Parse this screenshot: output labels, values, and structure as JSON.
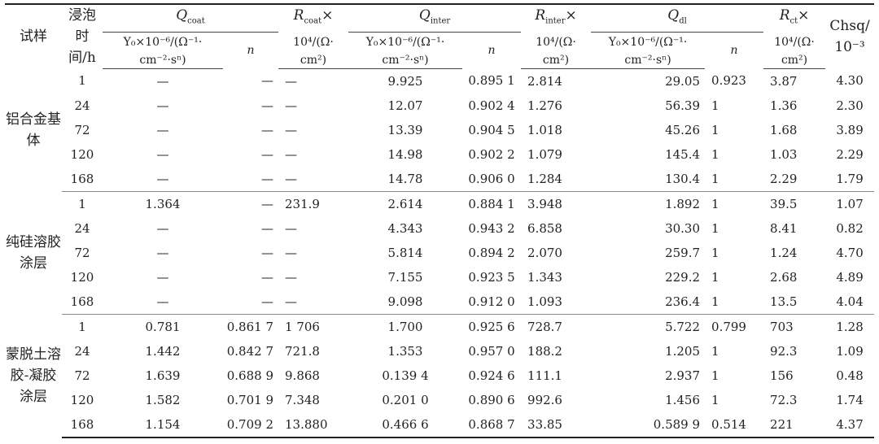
{
  "header": {
    "sample": "试样",
    "immersion_time": "浸泡时间/h",
    "q_coat": "Q",
    "q_coat_sub": "coat",
    "q_inter": "Q",
    "q_inter_sub": "inter",
    "q_dl": "Q",
    "q_dl_sub": "dl",
    "r_coat": "R",
    "r_coat_sub": "coat",
    "r_inter": "R",
    "r_inter_sub": "inter",
    "r_ct": "R",
    "r_ct_sub": "ct",
    "times_sign": "×",
    "y0_unit_line1": "Y₀×10⁻⁶/(Ω⁻¹·",
    "y0_unit_line2": "cm⁻²·sⁿ)",
    "r_unit_line1": "10⁴/(Ω·",
    "r_unit_line2": "cm²)",
    "n": "n",
    "chsq_line1": "Chsq/",
    "chsq_line2": "10⁻³"
  },
  "groups": [
    {
      "name": "铝合金基体",
      "rows": [
        [
          "1",
          "—",
          "—",
          "—",
          "9.925",
          "0.895 1",
          "2.814",
          "29.05",
          "0.923",
          "3.87",
          "4.30"
        ],
        [
          "24",
          "—",
          "—",
          "—",
          "12.07",
          "0.902 4",
          "1.276",
          "56.39",
          "1",
          "1.36",
          "2.30"
        ],
        [
          "72",
          "—",
          "—",
          "—",
          "13.39",
          "0.904 5",
          "1.018",
          "45.26",
          "1",
          "1.68",
          "3.89"
        ],
        [
          "120",
          "—",
          "—",
          "—",
          "14.98",
          "0.902 2",
          "1.079",
          "145.4",
          "1",
          "1.03",
          "2.29"
        ],
        [
          "168",
          "—",
          "—",
          "—",
          "14.78",
          "0.906 0",
          "1.284",
          "130.4",
          "1",
          "2.29",
          "1.79"
        ]
      ]
    },
    {
      "name": "纯硅溶胶涂层",
      "rows": [
        [
          "1",
          "1.364",
          "—",
          "231.9",
          "2.614",
          "0.884 1",
          "3.948",
          "1.892",
          "1",
          "39.5",
          "1.07"
        ],
        [
          "24",
          "—",
          "—",
          "—",
          "4.343",
          "0.943 2",
          "6.858",
          "30.30",
          "1",
          "8.41",
          "0.82"
        ],
        [
          "72",
          "—",
          "—",
          "—",
          "5.814",
          "0.894 2",
          "2.070",
          "259.7",
          "1",
          "1.24",
          "4.70"
        ],
        [
          "120",
          "—",
          "—",
          "—",
          "7.155",
          "0.923 5",
          "1.343",
          "229.2",
          "1",
          "2.68",
          "4.89"
        ],
        [
          "168",
          "—",
          "—",
          "—",
          "9.098",
          "0.912 0",
          "1.093",
          "236.4",
          "1",
          "13.5",
          "4.04"
        ]
      ]
    },
    {
      "name": "蒙脱土溶胶-凝胶涂层",
      "rows": [
        [
          "1",
          "0.781",
          "0.861 7",
          "1 706",
          "1.700",
          "0.925 6",
          "728.7",
          "5.722",
          "0.799",
          "703",
          "1.28"
        ],
        [
          "24",
          "1.442",
          "0.842 7",
          "721.8",
          "1.353",
          "0.957 0",
          "188.2",
          "1.205",
          "1",
          "92.3",
          "1.09"
        ],
        [
          "72",
          "1.639",
          "0.688 9",
          "9.868",
          "0.139 4",
          "0.924 6",
          "111.1",
          "2.937",
          "1",
          "156",
          "0.48"
        ],
        [
          "120",
          "1.582",
          "0.701 9",
          "7.348",
          "0.201 0",
          "0.890 6",
          "992.6",
          "1.456",
          "1",
          "72.3",
          "1.74"
        ],
        [
          "168",
          "1.154",
          "0.709 2",
          "13.880",
          "0.466 6",
          "0.868 7",
          "33.85",
          "0.589 9",
          "0.514",
          "221",
          "4.37"
        ]
      ]
    }
  ]
}
